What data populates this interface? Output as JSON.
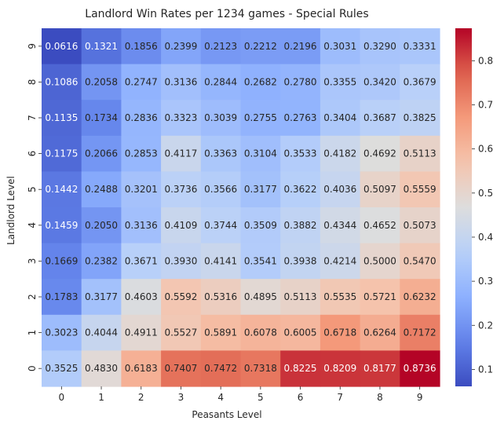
{
  "chart_data": {
    "type": "heatmap",
    "title": "Landlord Win Rates per 1234 games - Special Rules",
    "xlabel": "Peasants Level",
    "ylabel": "Landlord Level",
    "x_categories": [
      "0",
      "1",
      "2",
      "3",
      "4",
      "5",
      "6",
      "7",
      "8",
      "9"
    ],
    "y_categories": [
      "9",
      "8",
      "7",
      "6",
      "5",
      "4",
      "3",
      "2",
      "1",
      "0"
    ],
    "colormap": "coolwarm",
    "color_range": [
      0.0616,
      0.8736
    ],
    "colorbar_ticks": [
      "0.1",
      "0.2",
      "0.3",
      "0.4",
      "0.5",
      "0.6",
      "0.7",
      "0.8"
    ],
    "values": [
      [
        0.0616,
        0.1321,
        0.1856,
        0.2399,
        0.2123,
        0.2212,
        0.2196,
        0.3031,
        0.329,
        0.3331
      ],
      [
        0.1086,
        0.2058,
        0.2747,
        0.3136,
        0.2844,
        0.2682,
        0.278,
        0.3355,
        0.342,
        0.3679
      ],
      [
        0.1135,
        0.1734,
        0.2836,
        0.3323,
        0.3039,
        0.2755,
        0.2763,
        0.3404,
        0.3687,
        0.3825
      ],
      [
        0.1175,
        0.2066,
        0.2853,
        0.4117,
        0.3363,
        0.3104,
        0.3533,
        0.4182,
        0.4692,
        0.5113
      ],
      [
        0.1442,
        0.2488,
        0.3201,
        0.3736,
        0.3566,
        0.3177,
        0.3622,
        0.4036,
        0.5097,
        0.5559
      ],
      [
        0.1459,
        0.205,
        0.3136,
        0.4109,
        0.3744,
        0.3509,
        0.3882,
        0.4344,
        0.4652,
        0.5073
      ],
      [
        0.1669,
        0.2382,
        0.3671,
        0.393,
        0.4141,
        0.3541,
        0.3938,
        0.4214,
        0.5,
        0.547
      ],
      [
        0.1783,
        0.3177,
        0.4603,
        0.5592,
        0.5316,
        0.4895,
        0.5113,
        0.5535,
        0.5721,
        0.6232
      ],
      [
        0.3023,
        0.4044,
        0.4911,
        0.5527,
        0.5891,
        0.6078,
        0.6005,
        0.6718,
        0.6264,
        0.7172
      ],
      [
        0.3525,
        0.483,
        0.6183,
        0.7407,
        0.7472,
        0.7318,
        0.8225,
        0.8209,
        0.8177,
        0.8736
      ]
    ],
    "value_labels": [
      [
        "0.0616",
        "0.1321",
        "0.1856",
        "0.2399",
        "0.2123",
        "0.2212",
        "0.2196",
        "0.3031",
        "0.3290",
        "0.3331"
      ],
      [
        "0.1086",
        "0.2058",
        "0.2747",
        "0.3136",
        "0.2844",
        "0.2682",
        "0.2780",
        "0.3355",
        "0.3420",
        "0.3679"
      ],
      [
        "0.1135",
        "0.1734",
        "0.2836",
        "0.3323",
        "0.3039",
        "0.2755",
        "0.2763",
        "0.3404",
        "0.3687",
        "0.3825"
      ],
      [
        "0.1175",
        "0.2066",
        "0.2853",
        "0.4117",
        "0.3363",
        "0.3104",
        "0.3533",
        "0.4182",
        "0.4692",
        "0.5113"
      ],
      [
        "0.1442",
        "0.2488",
        "0.3201",
        "0.3736",
        "0.3566",
        "0.3177",
        "0.3622",
        "0.4036",
        "0.5097",
        "0.5559"
      ],
      [
        "0.1459",
        "0.2050",
        "0.3136",
        "0.4109",
        "0.3744",
        "0.3509",
        "0.3882",
        "0.4344",
        "0.4652",
        "0.5073"
      ],
      [
        "0.1669",
        "0.2382",
        "0.3671",
        "0.3930",
        "0.4141",
        "0.3541",
        "0.3938",
        "0.4214",
        "0.5000",
        "0.5470"
      ],
      [
        "0.1783",
        "0.3177",
        "0.4603",
        "0.5592",
        "0.5316",
        "0.4895",
        "0.5113",
        "0.5535",
        "0.5721",
        "0.6232"
      ],
      [
        "0.3023",
        "0.4044",
        "0.4911",
        "0.5527",
        "0.5891",
        "0.6078",
        "0.6005",
        "0.6718",
        "0.6264",
        "0.7172"
      ],
      [
        "0.3525",
        "0.4830",
        "0.6183",
        "0.7407",
        "0.7472",
        "0.7318",
        "0.8225",
        "0.8209",
        "0.8177",
        "0.8736"
      ]
    ],
    "grid": false,
    "colorbar": "right"
  }
}
